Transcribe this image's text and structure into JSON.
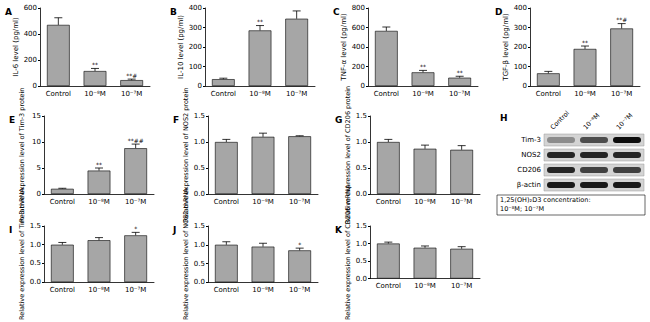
{
  "chart_data": [
    {
      "type": "bar",
      "title": "A",
      "y_label": "IL-6 level (pg/ml)",
      "categories": [
        "Control",
        "10⁻⁸M",
        "10⁻⁷M"
      ],
      "values": [
        470,
        115,
        45
      ],
      "errors": [
        55,
        20,
        8
      ],
      "annotations": [
        null,
        "**",
        "**#"
      ],
      "color": "#a6a6a6",
      "ylim": [
        0,
        600
      ],
      "yticks": [
        0,
        200,
        400,
        600
      ],
      "grid": false
    },
    {
      "type": "bar",
      "title": "B",
      "y_label": "IL-10 level (pg/ml)",
      "categories": [
        "Control",
        "10⁻⁸M",
        "10⁻⁷M"
      ],
      "values": [
        35,
        285,
        345
      ],
      "errors": [
        5,
        25,
        40
      ],
      "annotations": [
        null,
        "**",
        "**"
      ],
      "color": "#a6a6a6",
      "ylim": [
        0,
        400
      ],
      "yticks": [
        0,
        100,
        200,
        300,
        400
      ],
      "grid": false
    },
    {
      "type": "bar",
      "title": "C",
      "y_label": "TNF-α level (pg/ml)",
      "categories": [
        "Control",
        "10⁻⁸M",
        "10⁻⁷M"
      ],
      "values": [
        565,
        140,
        85
      ],
      "errors": [
        40,
        20,
        15
      ],
      "annotations": [
        null,
        "**",
        "**"
      ],
      "color": "#a6a6a6",
      "ylim": [
        0,
        800
      ],
      "yticks": [
        0,
        200,
        400,
        600,
        800
      ],
      "grid": false
    },
    {
      "type": "bar",
      "title": "D",
      "y_label": "TGF-β level (pg/ml)",
      "categories": [
        "Control",
        "10⁻⁸M",
        "10⁻⁷M"
      ],
      "values": [
        65,
        190,
        295
      ],
      "errors": [
        10,
        15,
        25
      ],
      "annotations": [
        null,
        "**",
        "**#"
      ],
      "color": "#a6a6a6",
      "ylim": [
        0,
        400
      ],
      "yticks": [
        0,
        100,
        200,
        300,
        400
      ],
      "grid": false
    },
    {
      "type": "bar",
      "title": "E",
      "y_label": "Relative expression level of Tim-3 protein",
      "categories": [
        "Control",
        "10⁻⁸M",
        "10⁻⁷M"
      ],
      "values": [
        1.0,
        4.5,
        8.8
      ],
      "errors": [
        0.1,
        0.5,
        0.8
      ],
      "annotations": [
        null,
        "**",
        "**##"
      ],
      "color": "#a6a6a6",
      "ylim": [
        0,
        15
      ],
      "yticks": [
        0,
        5,
        10,
        15
      ],
      "grid": false
    },
    {
      "type": "bar",
      "title": "F",
      "y_label": "Relative expression level of NOS2 protein",
      "categories": [
        "Control",
        "10⁻⁸M",
        "10⁻⁷M"
      ],
      "values": [
        1.0,
        1.1,
        1.11
      ],
      "errors": [
        0.05,
        0.07,
        0.01
      ],
      "color": "#a6a6a6",
      "ylim": [
        0,
        1.5
      ],
      "yticks": [
        {
          "value": 0,
          "label": "0.0"
        },
        0.5,
        {
          "value": 1,
          "label": "1.0"
        },
        1.5
      ],
      "grid": false
    },
    {
      "type": "bar",
      "title": "G",
      "y_label": "Relative expression level of CD206 protein",
      "categories": [
        "Control",
        "10⁻⁸M",
        "10⁻⁷M"
      ],
      "values": [
        1.0,
        0.87,
        0.85
      ],
      "errors": [
        0.05,
        0.07,
        0.08
      ],
      "color": "#a6a6a6",
      "ylim": [
        0,
        1.5
      ],
      "yticks": [
        {
          "value": 0,
          "label": "0.0"
        },
        0.5,
        {
          "value": 1,
          "label": "1.0"
        },
        1.5
      ],
      "grid": false
    },
    {
      "type": "bar",
      "title": "I",
      "y_label": "Relative expression level of Tim-3 mRNA",
      "categories": [
        "Control",
        "10⁻⁸M",
        "10⁻⁷M"
      ],
      "values": [
        1.0,
        1.12,
        1.25
      ],
      "errors": [
        0.06,
        0.07,
        0.08
      ],
      "annotations": [
        null,
        null,
        "*"
      ],
      "color": "#a6a6a6",
      "ylim": [
        0,
        1.5
      ],
      "yticks": [
        {
          "value": 0,
          "label": "0.0"
        },
        0.5,
        {
          "value": 1,
          "label": "1.0"
        },
        1.5
      ],
      "grid": false
    },
    {
      "type": "bar",
      "title": "J",
      "y_label": "Relative expression level of NOS2 mRNA",
      "categories": [
        "Control",
        "10⁻⁸M",
        "10⁻⁷M"
      ],
      "values": [
        1.0,
        0.95,
        0.85
      ],
      "errors": [
        0.08,
        0.09,
        0.06
      ],
      "annotations": [
        null,
        null,
        "*"
      ],
      "color": "#a6a6a6",
      "ylim": [
        0,
        1.5
      ],
      "yticks": [
        {
          "value": 0,
          "label": "0.0"
        },
        0.5,
        {
          "value": 1,
          "label": "1.0"
        },
        1.5
      ],
      "grid": false
    },
    {
      "type": "bar",
      "title": "K",
      "y_label": "Relative expression level of CD206 mRNA",
      "categories": [
        "Control",
        "10⁻⁸M",
        "10⁻⁷M"
      ],
      "values": [
        1.0,
        0.88,
        0.85
      ],
      "errors": [
        0.04,
        0.05,
        0.06
      ],
      "color": "#a6a6a6",
      "ylim": [
        0,
        1.5
      ],
      "yticks": [
        {
          "value": 0,
          "label": "0.0"
        },
        0.5,
        {
          "value": 1,
          "label": "1.0"
        },
        1.5
      ],
      "grid": false
    }
  ],
  "blot": {
    "title": "H",
    "lanes": [
      "Control",
      "10⁻⁸M",
      "10⁻⁷M"
    ],
    "rows": [
      "Tim-3",
      "NOS2",
      "CD206",
      "β-actin"
    ],
    "caption": [
      "1,25(OH)₂D3 concentration:",
      "10⁻⁸M; 10⁻⁷M"
    ]
  }
}
